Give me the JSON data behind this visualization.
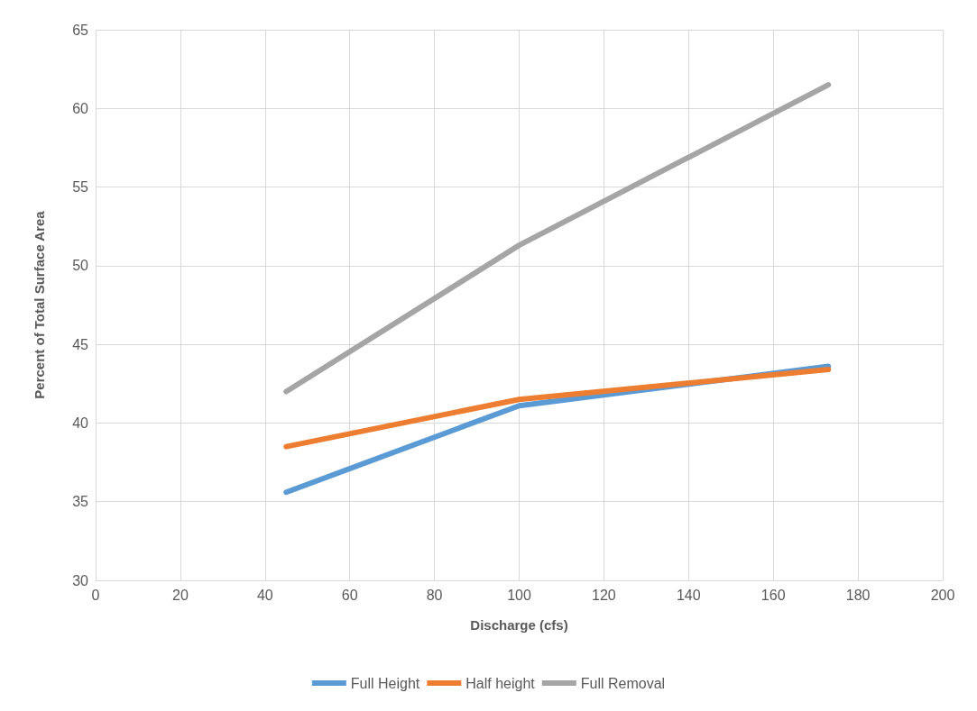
{
  "chart_data": {
    "type": "line",
    "xlabel": "Discharge (cfs)",
    "ylabel": "Percent of Total Surface Area",
    "x": [
      45,
      100,
      173
    ],
    "series": [
      {
        "name": "Full Height",
        "color": "#5b9bd5",
        "values": [
          35.6,
          41.1,
          43.6
        ]
      },
      {
        "name": "Half height",
        "color": "#ed7d31",
        "values": [
          38.5,
          41.5,
          43.4
        ]
      },
      {
        "name": "Full Removal",
        "color": "#a5a5a5",
        "values": [
          42.0,
          51.3,
          61.5
        ]
      }
    ],
    "xlim": [
      0,
      200
    ],
    "xticks": [
      0,
      20,
      40,
      60,
      80,
      100,
      120,
      140,
      160,
      180,
      200
    ],
    "ylim": [
      30,
      65
    ],
    "yticks": [
      30,
      35,
      40,
      45,
      50,
      55,
      60,
      65
    ],
    "grid": true,
    "legend": "bottom",
    "marker": "none",
    "line_style": "solid"
  }
}
